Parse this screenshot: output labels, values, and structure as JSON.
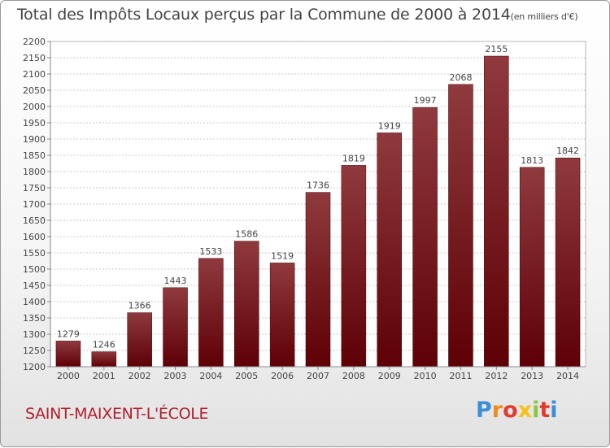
{
  "title": "Total des Impôts Locaux perçus par la Commune de 2000 à 2014",
  "unit": "(en milliers d'€)",
  "commune": "SAINT-MAIXENT-L'ÉCOLE",
  "brand": {
    "letters": [
      "P",
      "r",
      "o",
      "x",
      "i",
      "t",
      "i"
    ],
    "colors": [
      "#3b8fd6",
      "#f08a1c",
      "#e23b2e",
      "#f5c218",
      "#8cc63f",
      "#e23b2e",
      "#3b8fd6"
    ]
  },
  "colors": {
    "bar_top": "#8f3a3e",
    "bar_bottom": "#5e0006",
    "commune_text": "#b31e2b"
  },
  "chart_data": {
    "type": "bar",
    "title": "Total des Impôts Locaux perçus par la Commune de 2000 à 2014",
    "ylabel": "en milliers d'€",
    "xlabel": "",
    "categories": [
      "2000",
      "2001",
      "2002",
      "2003",
      "2004",
      "2005",
      "2006",
      "2007",
      "2008",
      "2009",
      "2010",
      "2011",
      "2012",
      "2013",
      "2014"
    ],
    "values": [
      1279,
      1246,
      1366,
      1443,
      1533,
      1586,
      1519,
      1736,
      1819,
      1919,
      1997,
      2068,
      2155,
      1813,
      1842
    ],
    "ylim": [
      1200,
      2200
    ],
    "yticks": [
      1200,
      1250,
      1300,
      1350,
      1400,
      1450,
      1500,
      1550,
      1600,
      1650,
      1700,
      1750,
      1800,
      1850,
      1900,
      1950,
      2000,
      2050,
      2100,
      2150,
      2200
    ],
    "grid": true,
    "legend": "none"
  }
}
